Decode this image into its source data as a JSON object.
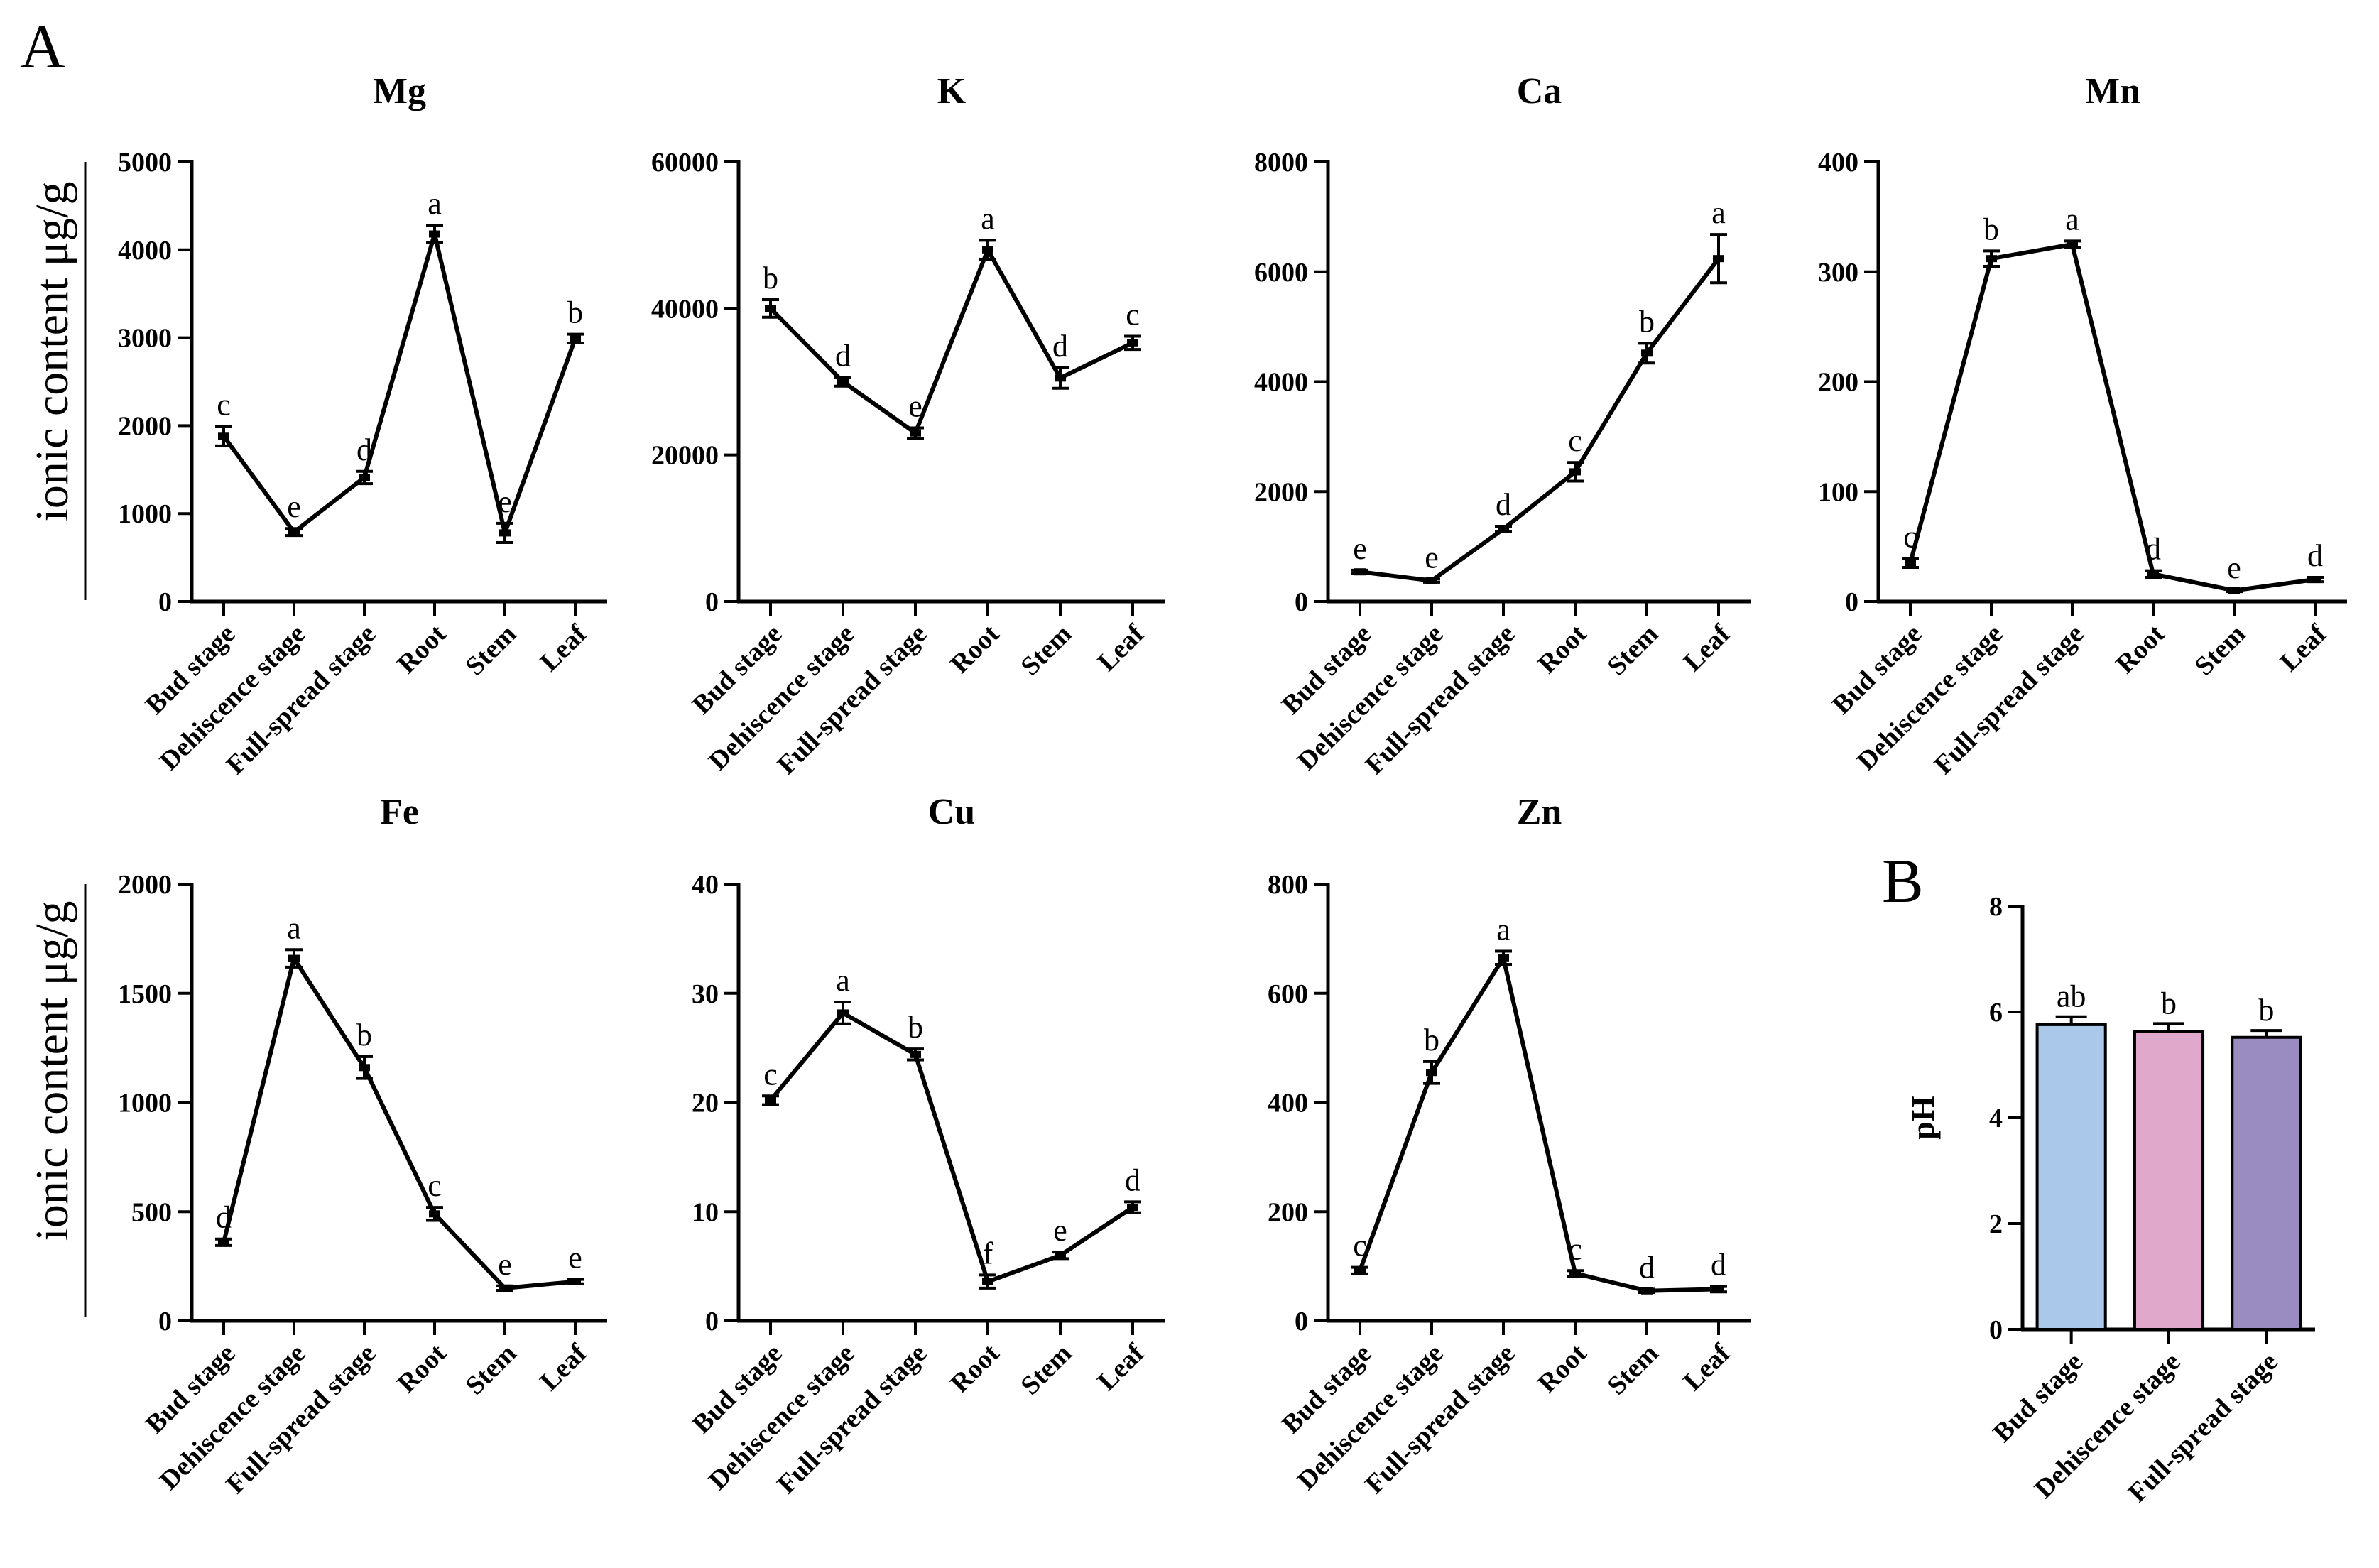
{
  "panel_labels": {
    "a": "A",
    "b": "B"
  },
  "y_label_a": "ionic content  μg/g",
  "colors": {
    "line": "#000000",
    "bar_fills": [
      "#a9c8ea",
      "#e0a9cc",
      "#9a8bc0"
    ]
  },
  "chart_data": [
    {
      "type": "line",
      "title": "Mg",
      "categories": [
        "Bud stage",
        "Dehiscence stage",
        "Full-spread stage",
        "Root",
        "Stem",
        "Leaf"
      ],
      "values": [
        1880,
        790,
        1410,
        4180,
        780,
        2990
      ],
      "errors": [
        110,
        40,
        70,
        100,
        110,
        50
      ],
      "letters": [
        "c",
        "e",
        "d",
        "a",
        "e",
        "b"
      ],
      "ylim": [
        0,
        5000
      ],
      "ticks": [
        0,
        1000,
        2000,
        3000,
        4000,
        5000
      ],
      "tick_labels": [
        "0",
        "1000",
        "2000",
        "3000",
        "4000",
        "5000"
      ]
    },
    {
      "type": "line",
      "title": "K",
      "categories": [
        "Bud stage",
        "Dehiscence stage",
        "Full-spread stage",
        "Root",
        "Stem",
        "Leaf"
      ],
      "values": [
        40000,
        30000,
        23000,
        48000,
        30500,
        35300
      ],
      "errors": [
        1200,
        600,
        700,
        1300,
        1400,
        900
      ],
      "letters": [
        "b",
        "d",
        "e",
        "a",
        "d",
        "c"
      ],
      "ylim": [
        0,
        60000
      ],
      "ticks": [
        0,
        20000,
        40000,
        60000
      ],
      "tick_labels": [
        "0",
        "20000",
        "40000",
        "60000"
      ]
    },
    {
      "type": "line",
      "title": "Ca",
      "categories": [
        "Bud stage",
        "Dehiscence stage",
        "Full-spread stage",
        "Root",
        "Stem",
        "Leaf"
      ],
      "values": [
        540,
        380,
        1320,
        2360,
        4520,
        6240
      ],
      "errors": [
        30,
        30,
        50,
        170,
        180,
        440
      ],
      "letters": [
        "e",
        "e",
        "d",
        "c",
        "b",
        "a"
      ],
      "ylim": [
        0,
        8000
      ],
      "ticks": [
        0,
        2000,
        4000,
        6000,
        8000
      ],
      "tick_labels": [
        "0",
        "2000",
        "4000",
        "6000",
        "8000"
      ]
    },
    {
      "type": "line",
      "title": "Mn",
      "categories": [
        "Bud stage",
        "Dehiscence stage",
        "Full-spread stage",
        "Root",
        "Stem",
        "Leaf"
      ],
      "values": [
        35,
        312,
        325,
        25,
        10,
        20
      ],
      "errors": [
        4,
        7,
        3,
        3,
        1,
        2
      ],
      "letters": [
        "c",
        "b",
        "a",
        "d",
        "e",
        "d"
      ],
      "ylim": [
        0,
        400
      ],
      "ticks": [
        0,
        100,
        200,
        300,
        400
      ],
      "tick_labels": [
        "0",
        "100",
        "200",
        "300",
        "400"
      ]
    },
    {
      "type": "line",
      "title": "Fe",
      "categories": [
        "Bud stage",
        "Dehiscence stage",
        "Full-spread stage",
        "Root",
        "Stem",
        "Leaf"
      ],
      "values": [
        360,
        1660,
        1160,
        490,
        150,
        180
      ],
      "errors": [
        15,
        40,
        50,
        30,
        10,
        10
      ],
      "letters": [
        "d",
        "a",
        "b",
        "c",
        "e",
        "e"
      ],
      "ylim": [
        0,
        2000
      ],
      "ticks": [
        0,
        500,
        1000,
        1500,
        2000
      ],
      "tick_labels": [
        "0",
        "500",
        "1000",
        "1500",
        "2000"
      ]
    },
    {
      "type": "line",
      "title": "Cu",
      "categories": [
        "Bud stage",
        "Dehiscence stage",
        "Full-spread stage",
        "Root",
        "Stem",
        "Leaf"
      ],
      "values": [
        20.2,
        28.2,
        24.4,
        3.6,
        6.0,
        10.4
      ],
      "errors": [
        0.4,
        1.0,
        0.5,
        0.6,
        0.3,
        0.5
      ],
      "letters": [
        "c",
        "a",
        "b",
        "f",
        "e",
        "d"
      ],
      "ylim": [
        0,
        40
      ],
      "ticks": [
        0,
        10,
        20,
        30,
        40
      ],
      "tick_labels": [
        "0",
        "10",
        "20",
        "30",
        "40"
      ]
    },
    {
      "type": "line",
      "title": "Zn",
      "categories": [
        "Bud stage",
        "Dehiscence stage",
        "Full-spread stage",
        "Root",
        "Stem",
        "Leaf"
      ],
      "values": [
        92,
        455,
        665,
        87,
        55,
        58
      ],
      "errors": [
        6,
        20,
        12,
        5,
        3,
        5
      ],
      "letters": [
        "c",
        "b",
        "a",
        "c",
        "d",
        "d"
      ],
      "ylim": [
        0,
        800
      ],
      "ticks": [
        0,
        200,
        400,
        600,
        800
      ],
      "tick_labels": [
        "0",
        "200",
        "400",
        "600",
        "800"
      ]
    },
    {
      "type": "bar",
      "title": "",
      "ylabel": "pH",
      "categories": [
        "Bud stage",
        "Dehiscence stage",
        "Full-spread stage"
      ],
      "values": [
        5.76,
        5.63,
        5.52
      ],
      "errors": [
        0.15,
        0.15,
        0.13
      ],
      "letters": [
        "ab",
        "b",
        "b"
      ],
      "ylim": [
        0,
        8
      ],
      "ticks": [
        0,
        2,
        4,
        6,
        8
      ],
      "tick_labels": [
        "0",
        "2",
        "4",
        "6",
        "8"
      ]
    }
  ]
}
